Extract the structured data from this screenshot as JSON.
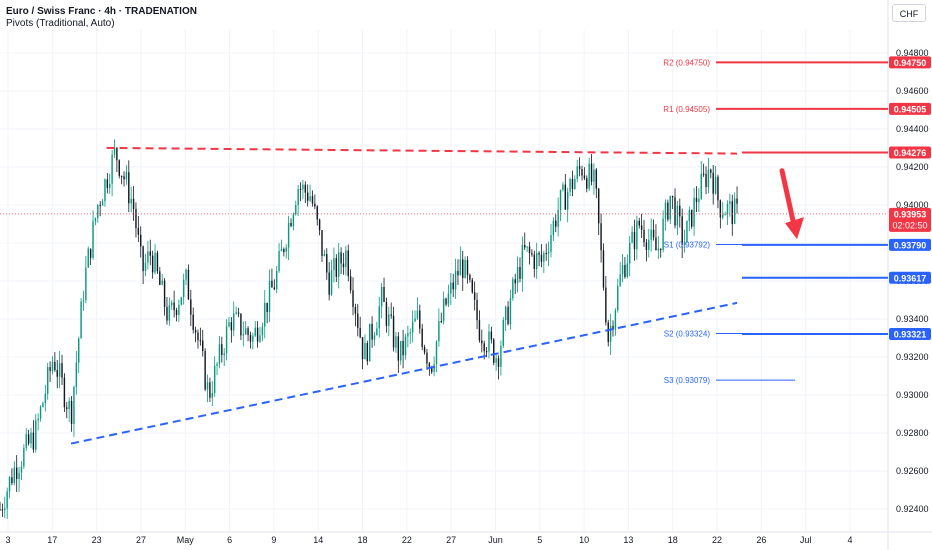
{
  "header": {
    "symbol_line": "Euro / Swiss Franc · 4h · TRADENATION",
    "indicator_line": "Pivots (Traditional, Auto)",
    "currency_button": "CHF"
  },
  "colors": {
    "up": "#089981",
    "down": "#131722",
    "red": "#f23645",
    "blue": "#2962ff",
    "grid": "#f0f3fa",
    "axis_text": "#131722"
  },
  "chart_data": {
    "type": "candlestick",
    "symbol": "EUR/CHF",
    "timeframe": "4h",
    "ylim": [
      0.9228,
      0.9492
    ],
    "y_ticks": [
      "0.94800",
      "0.94600",
      "0.94400",
      "0.94200",
      "0.94000",
      "0.93800",
      "0.93600",
      "0.93400",
      "0.93200",
      "0.93000",
      "0.92800",
      "0.92600",
      "0.92400"
    ],
    "x_ticks": [
      "3",
      "17",
      "23",
      "27",
      "May",
      "6",
      "9",
      "14",
      "18",
      "22",
      "27",
      "Jun",
      "5",
      "10",
      "13",
      "18",
      "22",
      "26",
      "Jul",
      "4"
    ],
    "current_price": {
      "value": "0.93953",
      "countdown": "02:02:50"
    },
    "price_labels": [
      {
        "value": "0.94750",
        "color": "red"
      },
      {
        "value": "0.94505",
        "color": "red"
      },
      {
        "value": "0.94276",
        "color": "red"
      },
      {
        "value": "0.93790",
        "color": "blue"
      },
      {
        "value": "0.93617",
        "color": "blue"
      },
      {
        "value": "0.93321",
        "color": "blue"
      }
    ],
    "pivots": [
      {
        "label": "R2 (0.94750)",
        "value": 0.9475,
        "color": "red"
      },
      {
        "label": "R1 (0.94505)",
        "value": 0.94505,
        "color": "red"
      },
      {
        "label": "S1 (0.93792)",
        "value": 0.93792,
        "color": "blue"
      },
      {
        "label": "S2 (0.93324)",
        "value": 0.93324,
        "color": "blue"
      },
      {
        "label": "S3 (0.93079)",
        "value": 0.93079,
        "color": "blue"
      }
    ],
    "horizontal_lines": [
      {
        "value": 0.94276,
        "color": "red",
        "style": "solid"
      },
      {
        "value": 0.9379,
        "color": "blue",
        "style": "solid"
      },
      {
        "value": 0.93617,
        "color": "blue",
        "style": "solid"
      },
      {
        "value": 0.93321,
        "color": "blue",
        "style": "solid"
      }
    ],
    "trendlines": [
      {
        "name": "resistance",
        "color": "red",
        "style": "dashed",
        "from": [
          0.12,
          0.943
        ],
        "to": [
          0.83,
          0.9427
        ]
      },
      {
        "name": "support",
        "color": "blue",
        "style": "dashed",
        "from": [
          0.08,
          0.92745
        ],
        "to": [
          0.83,
          0.93485
        ]
      }
    ],
    "arrow": {
      "color": "red",
      "from_price": 0.9418,
      "to_price": 0.9382,
      "direction": "down"
    },
    "path_anchors": [
      [
        0,
        0.924
      ],
      [
        0.015,
        0.926
      ],
      [
        0.04,
        0.928
      ],
      [
        0.06,
        0.932
      ],
      [
        0.08,
        0.929
      ],
      [
        0.095,
        0.936
      ],
      [
        0.11,
        0.94
      ],
      [
        0.13,
        0.9428
      ],
      [
        0.15,
        0.94
      ],
      [
        0.16,
        0.9365
      ],
      [
        0.17,
        0.9375
      ],
      [
        0.19,
        0.934
      ],
      [
        0.21,
        0.936
      ],
      [
        0.235,
        0.93
      ],
      [
        0.26,
        0.934
      ],
      [
        0.285,
        0.933
      ],
      [
        0.31,
        0.936
      ],
      [
        0.335,
        0.941
      ],
      [
        0.35,
        0.9405
      ],
      [
        0.37,
        0.936
      ],
      [
        0.39,
        0.9375
      ],
      [
        0.41,
        0.932
      ],
      [
        0.43,
        0.935
      ],
      [
        0.45,
        0.932
      ],
      [
        0.47,
        0.934
      ],
      [
        0.485,
        0.9315
      ],
      [
        0.5,
        0.9345
      ],
      [
        0.52,
        0.937
      ],
      [
        0.54,
        0.9335
      ],
      [
        0.56,
        0.932
      ],
      [
        0.575,
        0.935
      ],
      [
        0.59,
        0.9375
      ],
      [
        0.61,
        0.937
      ],
      [
        0.63,
        0.94
      ],
      [
        0.655,
        0.942
      ],
      [
        0.67,
        0.941
      ],
      [
        0.685,
        0.933
      ],
      [
        0.7,
        0.9365
      ],
      [
        0.72,
        0.939
      ],
      [
        0.74,
        0.9375
      ],
      [
        0.755,
        0.9405
      ],
      [
        0.77,
        0.938
      ],
      [
        0.785,
        0.9405
      ],
      [
        0.8,
        0.942
      ],
      [
        0.81,
        0.94
      ],
      [
        0.83,
        0.9395
      ]
    ]
  }
}
